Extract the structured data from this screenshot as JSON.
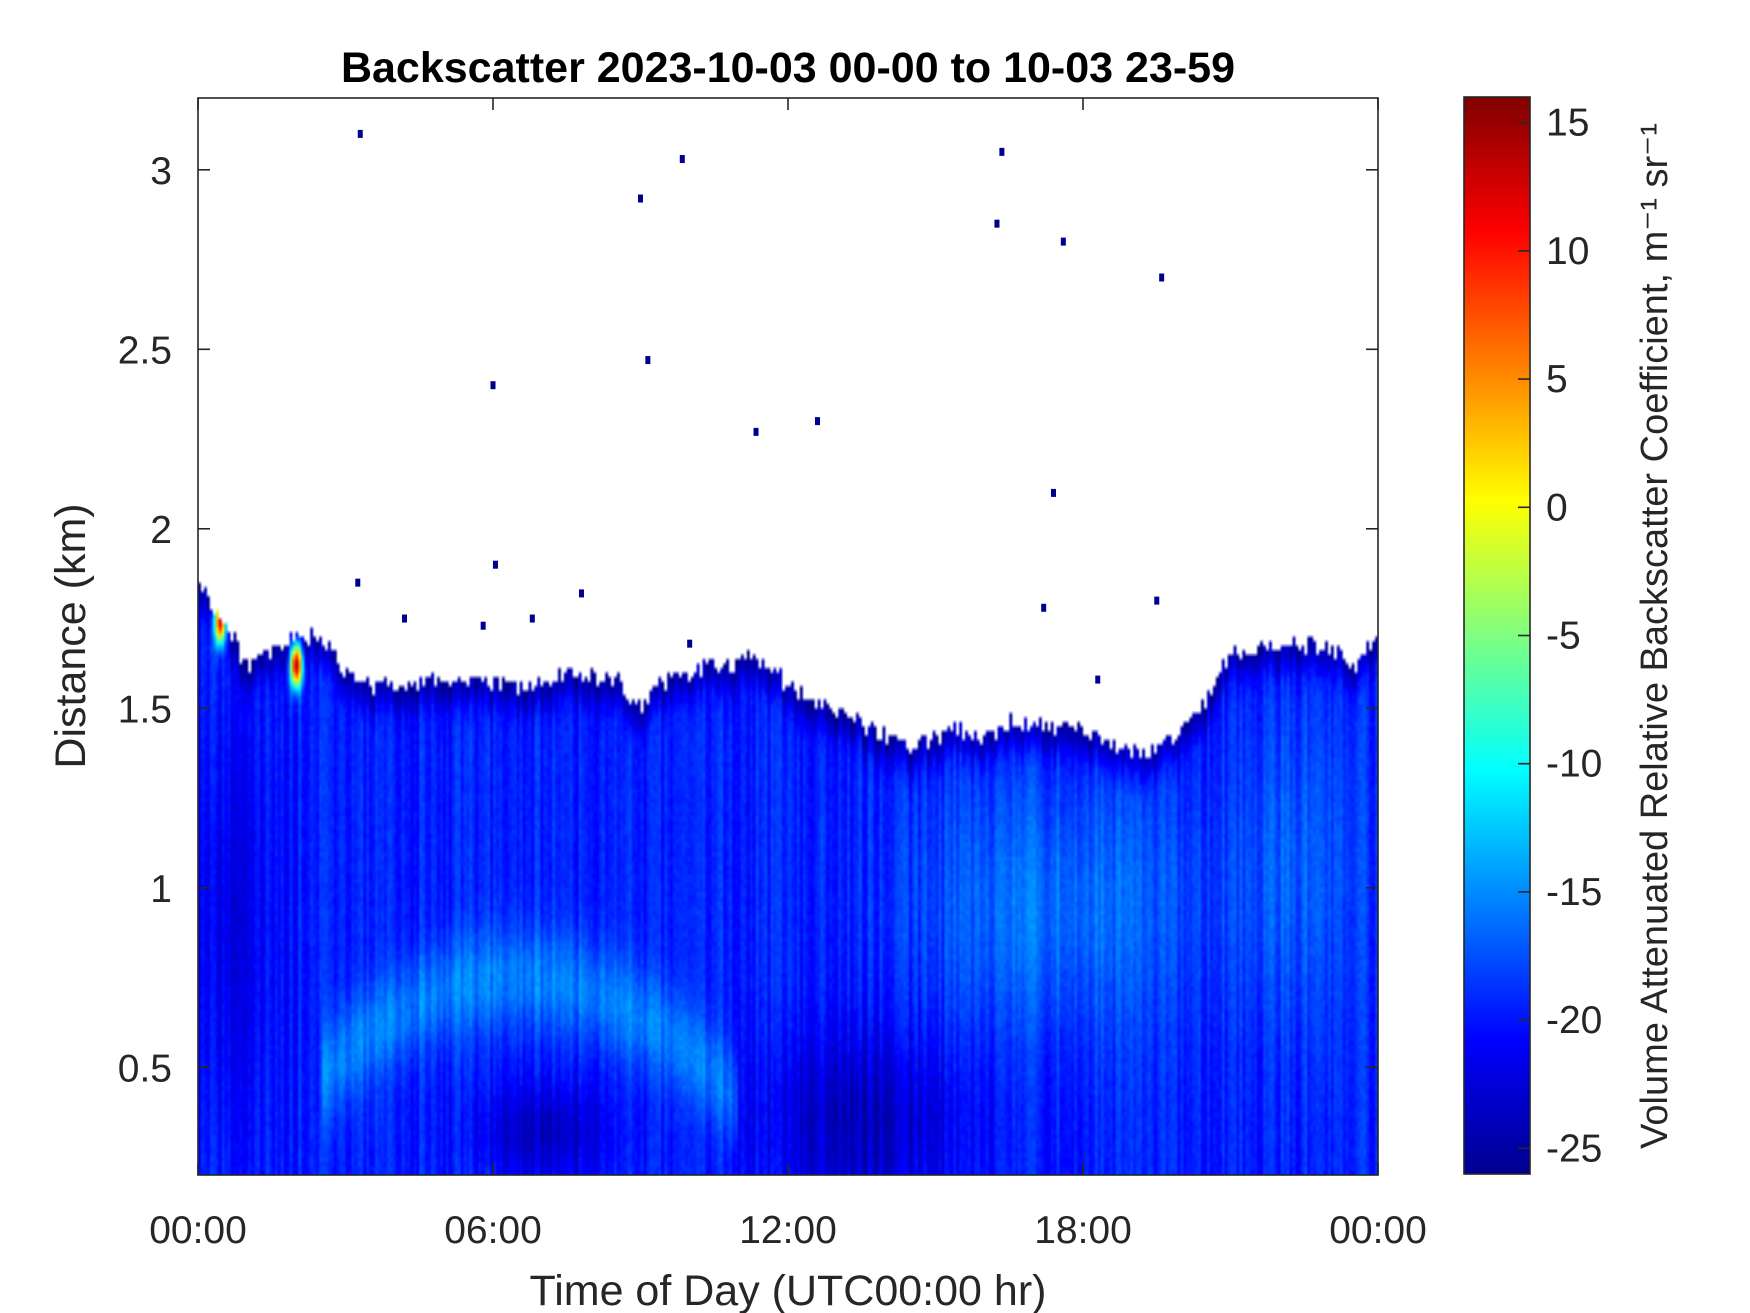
{
  "chart_data": {
    "type": "heatmap",
    "title": "Backscatter 2023-10-03 00-00 to 10-03 23-59",
    "xlabel": "Time of Day (UTC00:00 hr)",
    "ylabel": "Distance (km)",
    "colorbar_label": "Volume Attenuated Relative Backscatter Coefficient, m⁻¹ sr⁻¹",
    "colormap": "jet",
    "xlim": [
      0,
      24
    ],
    "ylim": [
      0.2,
      3.2
    ],
    "clim": [
      -26,
      16
    ],
    "x_ticks": [
      {
        "value": 0,
        "label": "00:00"
      },
      {
        "value": 6,
        "label": "06:00"
      },
      {
        "value": 12,
        "label": "12:00"
      },
      {
        "value": 18,
        "label": "18:00"
      },
      {
        "value": 24,
        "label": "00:00"
      }
    ],
    "y_ticks": [
      {
        "value": 0.5,
        "label": "0.5"
      },
      {
        "value": 1,
        "label": "1"
      },
      {
        "value": 1.5,
        "label": "1.5"
      },
      {
        "value": 2,
        "label": "2"
      },
      {
        "value": 2.5,
        "label": "2.5"
      },
      {
        "value": 3,
        "label": "3"
      }
    ],
    "colorbar_ticks": [
      {
        "value": 15,
        "label": "15"
      },
      {
        "value": 10,
        "label": "10"
      },
      {
        "value": 5,
        "label": "5"
      },
      {
        "value": 0,
        "label": "0"
      },
      {
        "value": -5,
        "label": "-5"
      },
      {
        "value": -10,
        "label": "-10"
      },
      {
        "value": -15,
        "label": "-15"
      },
      {
        "value": -20,
        "label": "-20"
      },
      {
        "value": -25,
        "label": "-25"
      }
    ],
    "signal_top_km": [
      [
        0.0,
        1.85
      ],
      [
        0.5,
        1.75
      ],
      [
        1.0,
        1.62
      ],
      [
        1.5,
        1.65
      ],
      [
        2.0,
        1.7
      ],
      [
        2.5,
        1.7
      ],
      [
        3.0,
        1.6
      ],
      [
        3.5,
        1.56
      ],
      [
        4.0,
        1.57
      ],
      [
        5.0,
        1.58
      ],
      [
        6.0,
        1.57
      ],
      [
        7.0,
        1.56
      ],
      [
        7.5,
        1.6
      ],
      [
        8.5,
        1.58
      ],
      [
        9.0,
        1.5
      ],
      [
        9.5,
        1.58
      ],
      [
        10.5,
        1.62
      ],
      [
        11.0,
        1.63
      ],
      [
        11.5,
        1.64
      ],
      [
        12.0,
        1.56
      ],
      [
        13.0,
        1.5
      ],
      [
        14.0,
        1.42
      ],
      [
        14.5,
        1.4
      ],
      [
        15.0,
        1.42
      ],
      [
        15.5,
        1.44
      ],
      [
        16.0,
        1.42
      ],
      [
        16.5,
        1.46
      ],
      [
        17.0,
        1.46
      ],
      [
        17.5,
        1.44
      ],
      [
        18.0,
        1.43
      ],
      [
        18.5,
        1.4
      ],
      [
        19.0,
        1.38
      ],
      [
        19.5,
        1.38
      ],
      [
        20.0,
        1.45
      ],
      [
        20.5,
        1.52
      ],
      [
        21.0,
        1.66
      ],
      [
        22.0,
        1.67
      ],
      [
        23.0,
        1.68
      ],
      [
        23.5,
        1.62
      ],
      [
        24.0,
        1.7
      ]
    ],
    "high_backscatter_patches": [
      {
        "time_hr": 0.45,
        "distance_km": 1.74,
        "value": 12
      },
      {
        "time_hr": 2.0,
        "distance_km": 1.62,
        "value": 14
      }
    ],
    "isolated_returns": [
      [
        3.3,
        3.1
      ],
      [
        9.85,
        3.03
      ],
      [
        9.0,
        2.92
      ],
      [
        16.35,
        3.05
      ],
      [
        16.25,
        2.85
      ],
      [
        17.6,
        2.8
      ],
      [
        19.6,
        2.7
      ],
      [
        9.15,
        2.47
      ],
      [
        6.0,
        2.4
      ],
      [
        11.35,
        2.27
      ],
      [
        12.6,
        2.3
      ],
      [
        17.4,
        2.1
      ],
      [
        6.05,
        1.9
      ],
      [
        3.25,
        1.85
      ],
      [
        7.8,
        1.82
      ],
      [
        17.2,
        1.78
      ],
      [
        19.5,
        1.8
      ],
      [
        4.2,
        1.75
      ],
      [
        6.8,
        1.75
      ],
      [
        5.8,
        1.73
      ],
      [
        10.0,
        1.68
      ],
      [
        18.3,
        1.58
      ]
    ]
  }
}
